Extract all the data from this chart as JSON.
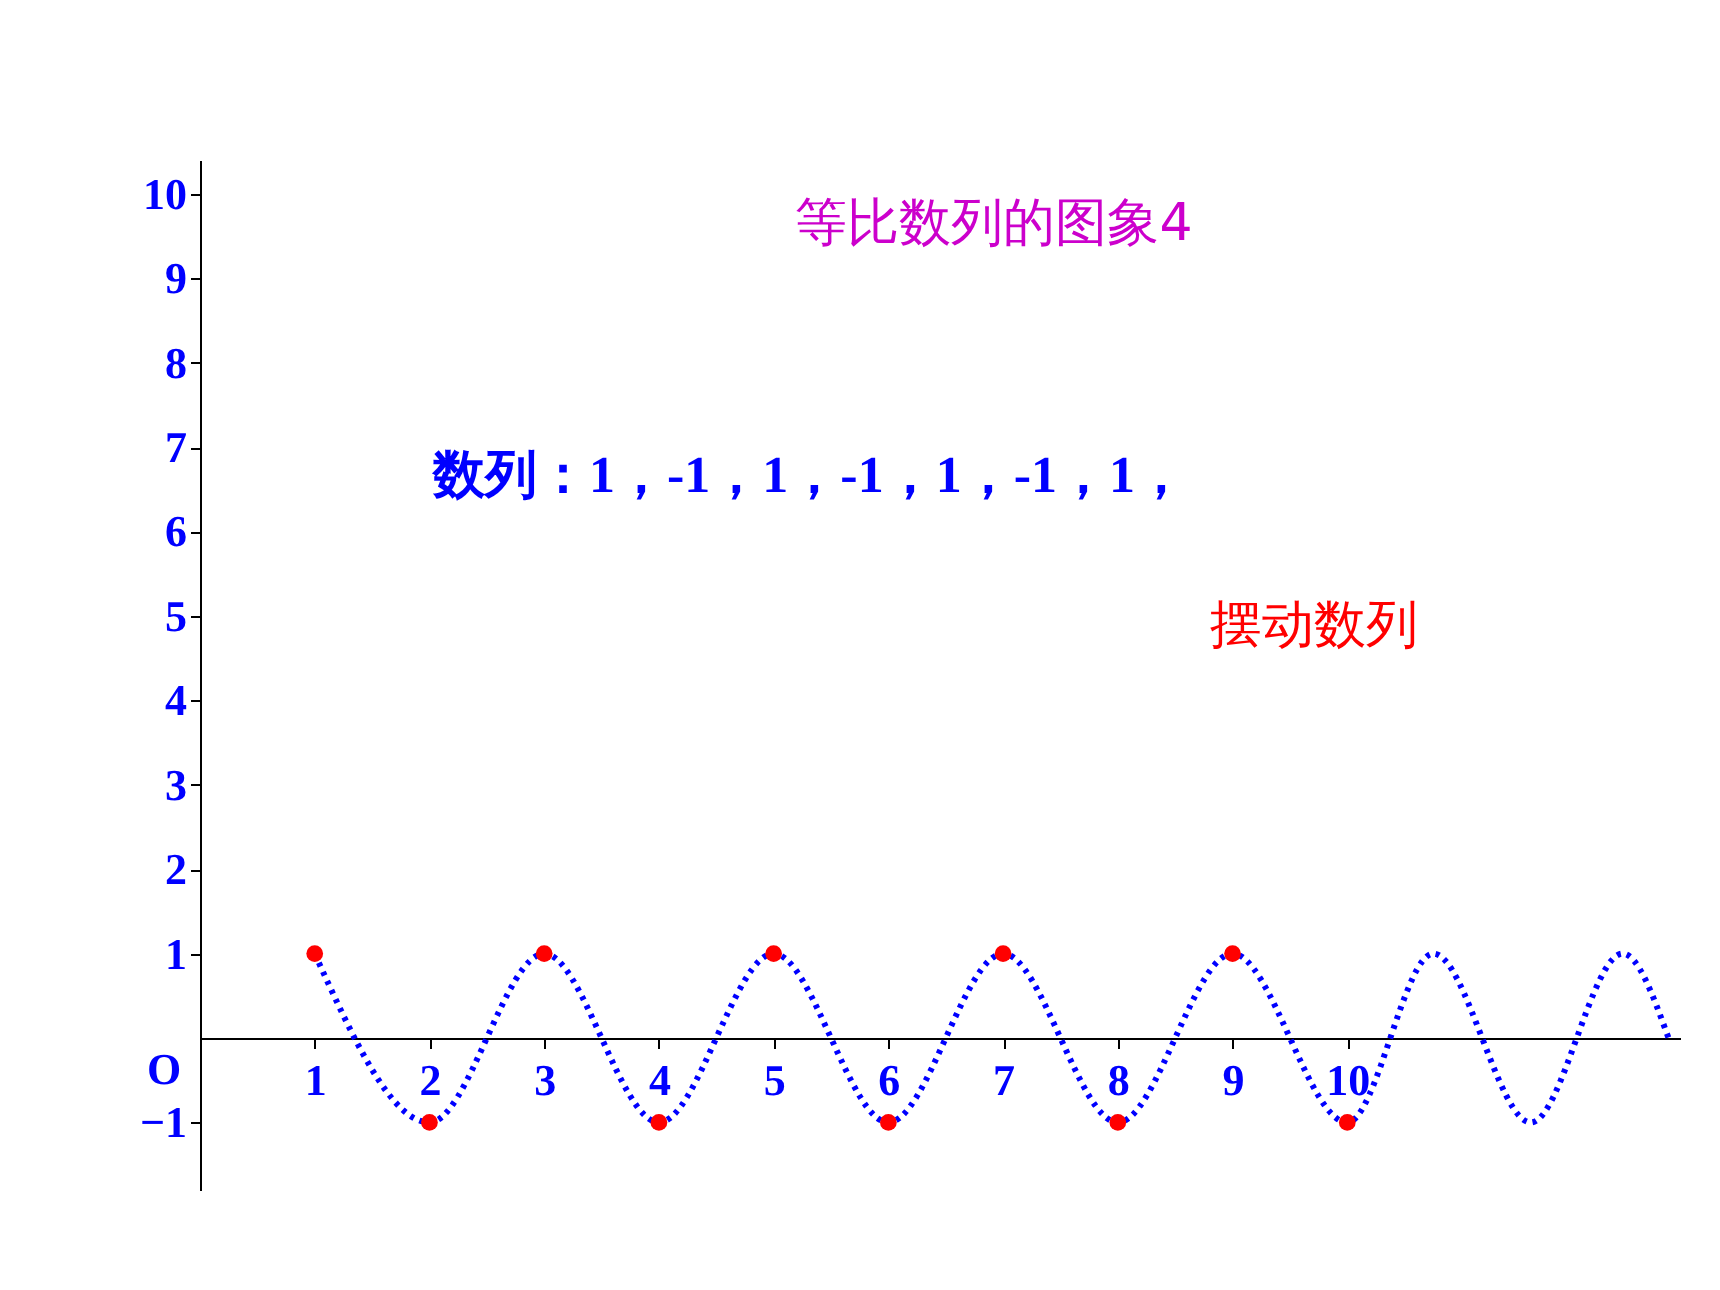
{
  "chart_data": {
    "type": "scatter",
    "title": "等比数列的图象4",
    "annotations": [
      "数列：1，-1，1，-1，1，-1，1，",
      "摆动数列",
      "O"
    ],
    "xlim": [
      0,
      12.9
    ],
    "ylim": [
      -1.8,
      10.4
    ],
    "xticks": [
      1,
      2,
      3,
      4,
      5,
      6,
      7,
      8,
      9,
      10
    ],
    "yticks": [
      {
        "value": -1,
        "label": "−1"
      },
      1,
      2,
      3,
      4,
      5,
      6,
      7,
      8,
      9,
      10
    ],
    "grid": false,
    "series": [
      {
        "type": "line",
        "color": "#0000ff",
        "line_style": "dotted",
        "marker": "none",
        "x": [
          1,
          2,
          3,
          4,
          5,
          6,
          7,
          8,
          9,
          10,
          10.75,
          11.6,
          12.4,
          12.8
        ],
        "values": [
          1,
          -1,
          1,
          -1,
          1,
          -1,
          1,
          -1,
          1,
          -1,
          1,
          -1,
          1,
          0
        ]
      },
      {
        "color": "#ff0000",
        "marker": "circle",
        "x": [
          1,
          2,
          3,
          4,
          5,
          6,
          7,
          8,
          9,
          10
        ],
        "values": [
          1,
          -1,
          1,
          -1,
          1,
          -1,
          1,
          -1,
          1,
          -1
        ]
      }
    ]
  }
}
